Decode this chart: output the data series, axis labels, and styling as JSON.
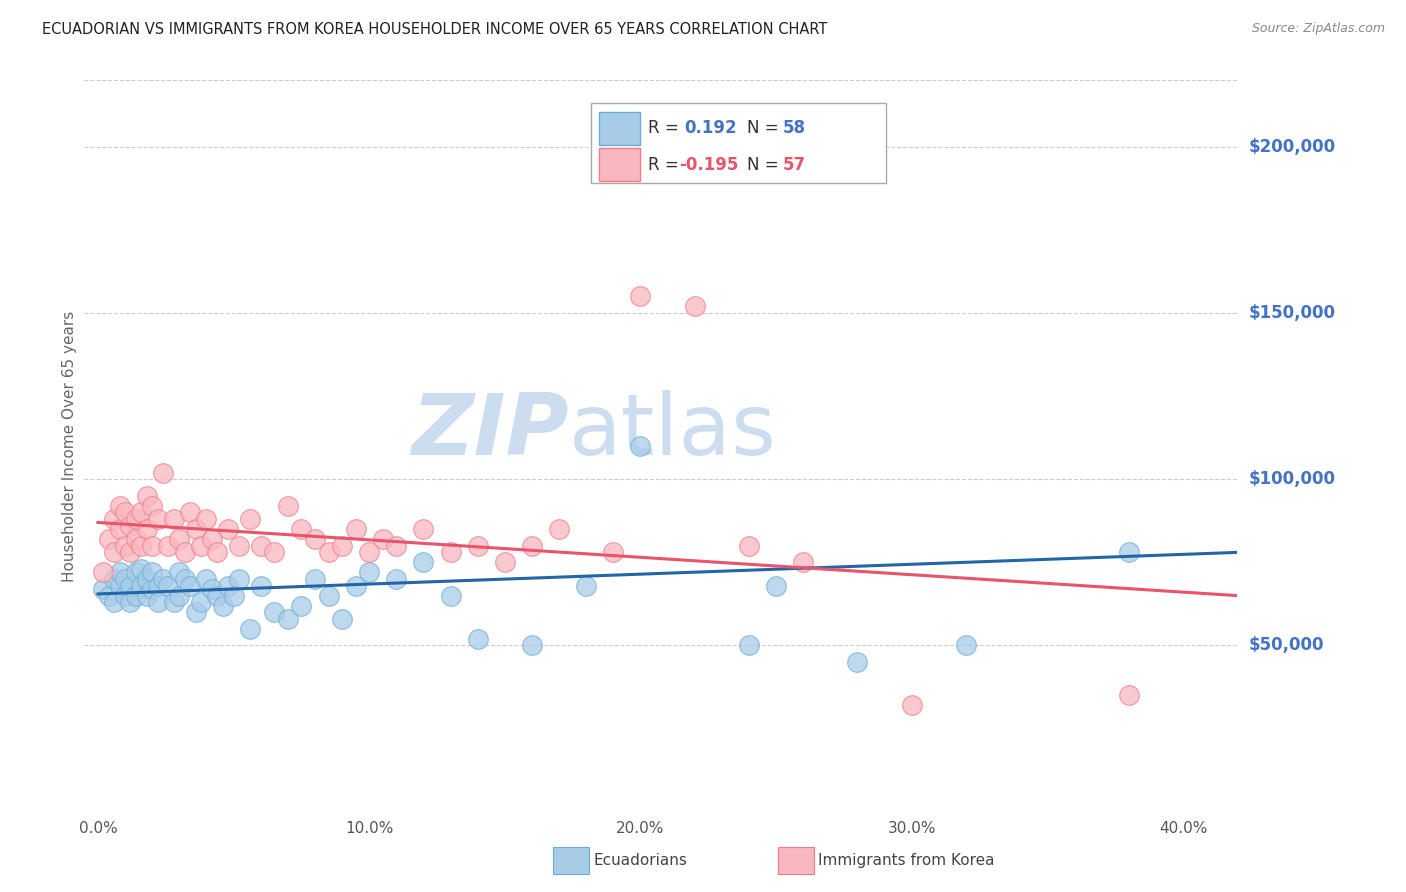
{
  "title": "ECUADORIAN VS IMMIGRANTS FROM KOREA HOUSEHOLDER INCOME OVER 65 YEARS CORRELATION CHART",
  "source": "Source: ZipAtlas.com",
  "ylabel": "Householder Income Over 65 years",
  "xlabel_ticks": [
    "0.0%",
    "10.0%",
    "20.0%",
    "30.0%",
    "40.0%"
  ],
  "xlabel_vals": [
    0.0,
    0.1,
    0.2,
    0.3,
    0.4
  ],
  "ylim": [
    0,
    220000
  ],
  "xlim": [
    -0.005,
    0.42
  ],
  "yticks": [
    50000,
    100000,
    150000,
    200000
  ],
  "ytick_labels": [
    "$50,000",
    "$100,000",
    "$150,000",
    "$200,000"
  ],
  "legend_blue_label": "Ecuadorians",
  "legend_pink_label": "Immigrants from Korea",
  "blue_dot_fill": "#a8cce8",
  "blue_dot_edge": "#6aaed6",
  "pink_dot_fill": "#f9b8c0",
  "pink_dot_edge": "#f07a88",
  "trend_blue_color": "#2366a8",
  "trend_pink_color": "#e8546a",
  "title_color": "#222222",
  "axis_label_color": "#4472c4",
  "ytick_color": "#4472c4",
  "xtick_color": "#555555",
  "watermark_color": "#ccddf0",
  "bg_color": "#ffffff",
  "grid_color": "#cccccc",
  "blue_x": [
    0.002,
    0.004,
    0.006,
    0.006,
    0.008,
    0.008,
    0.01,
    0.01,
    0.012,
    0.012,
    0.014,
    0.014,
    0.016,
    0.016,
    0.018,
    0.018,
    0.02,
    0.02,
    0.022,
    0.022,
    0.024,
    0.026,
    0.028,
    0.03,
    0.03,
    0.032,
    0.034,
    0.036,
    0.038,
    0.04,
    0.042,
    0.044,
    0.046,
    0.048,
    0.05,
    0.052,
    0.056,
    0.06,
    0.065,
    0.07,
    0.075,
    0.08,
    0.085,
    0.09,
    0.095,
    0.1,
    0.11,
    0.12,
    0.13,
    0.14,
    0.16,
    0.18,
    0.2,
    0.24,
    0.25,
    0.28,
    0.32,
    0.38
  ],
  "blue_y": [
    67000,
    65000,
    70000,
    63000,
    68000,
    72000,
    65000,
    70000,
    63000,
    68000,
    72000,
    65000,
    68000,
    73000,
    65000,
    70000,
    67000,
    72000,
    68000,
    63000,
    70000,
    68000,
    63000,
    72000,
    65000,
    70000,
    68000,
    60000,
    63000,
    70000,
    67000,
    65000,
    62000,
    68000,
    65000,
    70000,
    55000,
    68000,
    60000,
    58000,
    62000,
    70000,
    65000,
    58000,
    68000,
    72000,
    70000,
    75000,
    65000,
    52000,
    50000,
    68000,
    110000,
    50000,
    68000,
    45000,
    50000,
    78000
  ],
  "pink_x": [
    0.002,
    0.004,
    0.006,
    0.006,
    0.008,
    0.008,
    0.01,
    0.01,
    0.012,
    0.012,
    0.014,
    0.014,
    0.016,
    0.016,
    0.018,
    0.018,
    0.02,
    0.02,
    0.022,
    0.024,
    0.026,
    0.028,
    0.03,
    0.032,
    0.034,
    0.036,
    0.038,
    0.04,
    0.042,
    0.044,
    0.048,
    0.052,
    0.056,
    0.06,
    0.065,
    0.07,
    0.075,
    0.08,
    0.085,
    0.09,
    0.095,
    0.1,
    0.105,
    0.11,
    0.12,
    0.13,
    0.14,
    0.15,
    0.16,
    0.17,
    0.19,
    0.2,
    0.22,
    0.24,
    0.26,
    0.3,
    0.38
  ],
  "pink_y": [
    72000,
    82000,
    78000,
    88000,
    85000,
    92000,
    80000,
    90000,
    86000,
    78000,
    88000,
    82000,
    90000,
    80000,
    95000,
    85000,
    92000,
    80000,
    88000,
    102000,
    80000,
    88000,
    82000,
    78000,
    90000,
    85000,
    80000,
    88000,
    82000,
    78000,
    85000,
    80000,
    88000,
    80000,
    78000,
    92000,
    85000,
    82000,
    78000,
    80000,
    85000,
    78000,
    82000,
    80000,
    85000,
    78000,
    80000,
    75000,
    80000,
    85000,
    78000,
    155000,
    152000,
    80000,
    75000,
    32000,
    35000
  ],
  "trend_blue_x0": 0.0,
  "trend_blue_x1": 0.42,
  "trend_blue_y0": 65500,
  "trend_blue_y1": 78000,
  "trend_pink_x0": 0.0,
  "trend_pink_x1": 0.42,
  "trend_pink_y0": 87000,
  "trend_pink_y1": 65000
}
